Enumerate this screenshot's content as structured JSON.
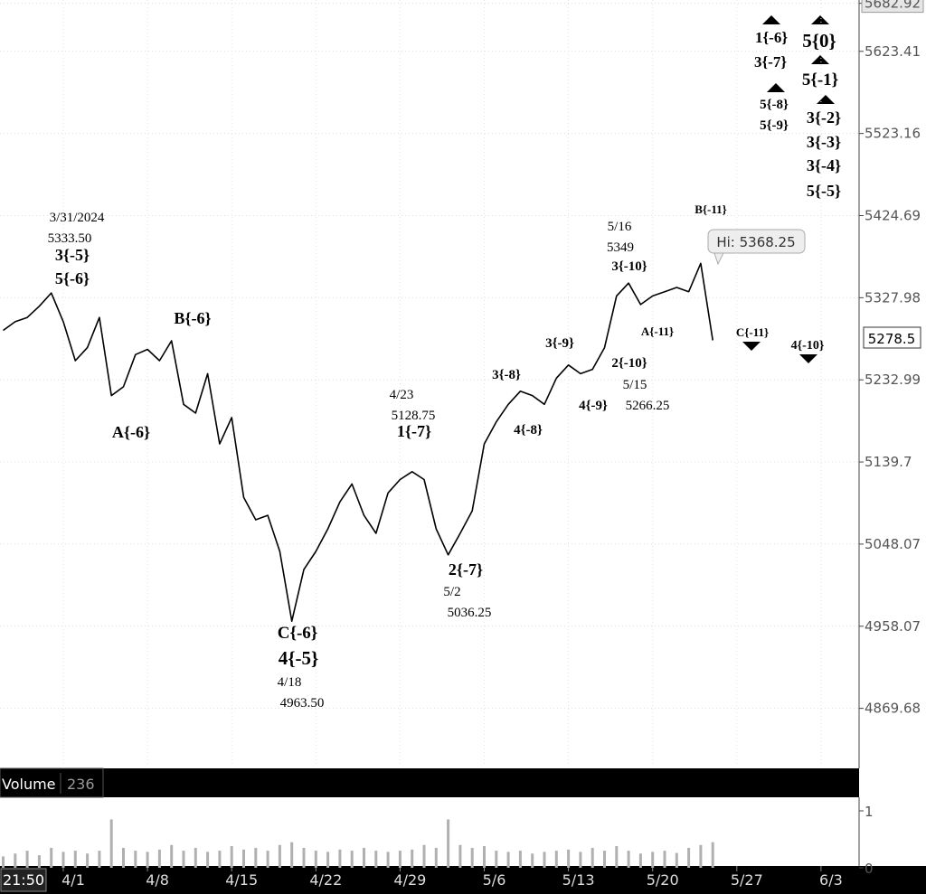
{
  "chart_data": {
    "type": "line",
    "categories": [
      null,
      null,
      null,
      null,
      null,
      "4/1",
      null,
      null,
      null,
      null,
      null,
      null,
      "4/8",
      null,
      null,
      null,
      null,
      null,
      null,
      "4/15",
      null,
      null,
      null,
      null,
      null,
      null,
      "4/22",
      null,
      null,
      null,
      null,
      null,
      null,
      "4/29",
      null,
      null,
      null,
      null,
      null,
      null,
      "5/6",
      null,
      null,
      null,
      null,
      null,
      null,
      "5/13",
      null,
      null,
      null,
      null,
      null,
      null,
      "5/20",
      null,
      null,
      null,
      null,
      null,
      null,
      "5/27",
      null,
      null,
      null,
      null,
      null,
      null,
      "6/3",
      null,
      null,
      null
    ],
    "values": [
      5290,
      5300,
      5305,
      5318,
      5333.5,
      5300,
      5255,
      5270,
      5305,
      5215,
      5225,
      5262,
      5268,
      5255,
      5278,
      5205,
      5195,
      5240,
      5160,
      5190,
      5100,
      5075,
      5080,
      5040,
      4963.5,
      5020,
      5040,
      5065,
      5095,
      5115,
      5080,
      5060,
      5105,
      5120,
      5128.75,
      5120,
      5065,
      5036.25,
      5060,
      5085,
      5160,
      5185,
      5205,
      5220,
      5215,
      5205,
      5235,
      5250,
      5240,
      5245,
      5270,
      5330,
      5345,
      5320,
      5330,
      5335,
      5340,
      5335,
      5368.25,
      5278.5,
      null,
      null,
      null,
      null,
      null,
      null,
      null,
      null,
      null,
      null,
      null,
      null
    ],
    "color": "#000000",
    "log_scale": true,
    "grid": true,
    "ylim": [
      4808,
      5687
    ],
    "yticks": [
      5682.92,
      5623.41,
      5523.16,
      5424.69,
      5327.98,
      5232.99,
      5139.7,
      5048.07,
      4958.07,
      4869.68
    ],
    "last_price": 5278.5,
    "high_label": "Hi: 5368.25",
    "time": "21:50",
    "annotations": [
      "3/31/2024",
      "5333.50",
      "3{-5}",
      "5{-6}",
      "B{-6}",
      "A{-6}",
      "C{-6}",
      "4{-5}",
      "4/18",
      "4963.50",
      "4/23",
      "5128.75",
      "1{-7}",
      "2{-7}",
      "5/2",
      "5036.25",
      "3{-8}",
      "4{-8}",
      "3{-9}",
      "4{-9}",
      "2{-10}",
      "5/15",
      "5266.25",
      "5/16",
      "5349",
      "3{-10}",
      "A{-11}",
      "B{-11}",
      "C{-11}",
      "4{-10}",
      "1{-6}",
      "3{-7}",
      "5{-8}",
      "5{-9}",
      "5{0}",
      "5{-1}",
      "3{-2}",
      "3{-3}",
      "3{-4}",
      "5{-5}"
    ],
    "volume": {
      "title": "Volume",
      "current": 236,
      "color": "#b0b0b0",
      "ylim": [
        0,
        1
      ],
      "yticks": [
        0,
        1
      ],
      "values": [
        0.2,
        0.25,
        0.3,
        0.22,
        0.35,
        0.28,
        0.3,
        0.25,
        0.3,
        0.85,
        0.35,
        0.3,
        0.28,
        0.32,
        0.4,
        0.3,
        0.35,
        0.28,
        0.3,
        0.38,
        0.32,
        0.35,
        0.3,
        0.4,
        0.45,
        0.35,
        0.3,
        0.28,
        0.32,
        0.3,
        0.35,
        0.3,
        0.28,
        0.3,
        0.32,
        0.4,
        0.35,
        0.85,
        0.4,
        0.35,
        0.38,
        0.3,
        0.28,
        0.3,
        0.25,
        0.28,
        0.3,
        0.32,
        0.28,
        0.35,
        0.3,
        0.38,
        0.3,
        0.25,
        0.28,
        0.3,
        0.26,
        0.35,
        0.4,
        0.45
      ]
    }
  }
}
